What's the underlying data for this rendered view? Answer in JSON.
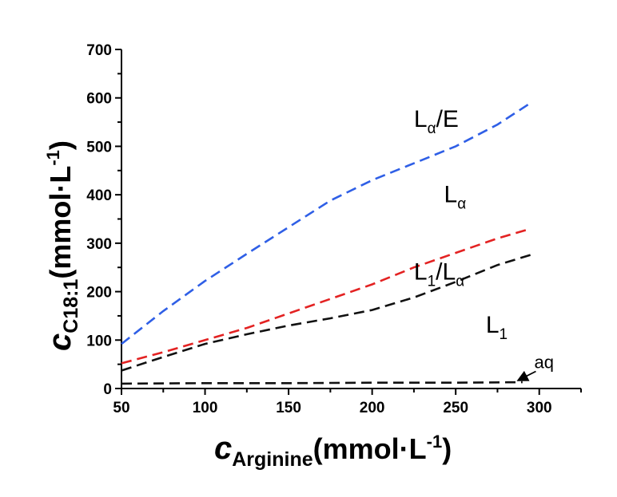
{
  "chart_data": {
    "type": "line",
    "xlim": [
      50,
      325
    ],
    "ylim": [
      0,
      700
    ],
    "xticks": [
      50,
      100,
      150,
      200,
      250,
      300
    ],
    "yticks": [
      0,
      100,
      200,
      300,
      400,
      500,
      600,
      700
    ],
    "xtick_labels": [
      "50",
      "100",
      "150",
      "200",
      "250",
      "300"
    ],
    "ytick_labels": [
      "0",
      "100",
      "200",
      "300",
      "400",
      "500",
      "600",
      "700"
    ],
    "xlabel": {
      "var": "c",
      "sub": "Arginine",
      "unit": "(mmol·L",
      "exp": "-1",
      "close": ")"
    },
    "ylabel": {
      "var": "c",
      "sub": "C18:1",
      "unit": "(mmol·L",
      "exp": "-1",
      "close": ")"
    },
    "grid": false,
    "series": [
      {
        "color": "#2f5fe6",
        "style": "dashed",
        "x": [
          50,
          75,
          100,
          125,
          150,
          175,
          200,
          225,
          250,
          275,
          295
        ],
        "y": [
          92,
          160,
          222,
          278,
          333,
          388,
          430,
          465,
          500,
          545,
          590
        ]
      },
      {
        "color": "#e32222",
        "style": "dashed",
        "x": [
          50,
          75,
          100,
          125,
          150,
          175,
          200,
          225,
          250,
          275,
          295
        ],
        "y": [
          52,
          75,
          100,
          125,
          155,
          185,
          215,
          250,
          280,
          310,
          330
        ]
      },
      {
        "color": "#111111",
        "style": "dashed",
        "x": [
          50,
          75,
          100,
          125,
          150,
          175,
          200,
          225,
          250,
          275,
          295
        ],
        "y": [
          37,
          65,
          92,
          112,
          130,
          145,
          162,
          188,
          220,
          255,
          276
        ]
      },
      {
        "color": "#111111",
        "style": "dashed",
        "x": [
          50,
          100,
          150,
          200,
          250,
          290
        ],
        "y": [
          10,
          11,
          11,
          12,
          12,
          13
        ]
      }
    ],
    "annotations": [
      {
        "id": "la-e",
        "main": "L",
        "sub": "α",
        "suffix": "/E",
        "x": 225,
        "y": 540
      },
      {
        "id": "la",
        "main": "L",
        "sub": "α",
        "suffix": "",
        "x": 243,
        "y": 385
      },
      {
        "id": "l1-la",
        "main": "L",
        "sub": "1",
        "suffix": "/L",
        "sub2": "α",
        "x": 225,
        "y": 225
      },
      {
        "id": "l1",
        "main": "L",
        "sub": "1",
        "suffix": "",
        "x": 268,
        "y": 115
      },
      {
        "id": "aq",
        "main": "aq",
        "x": 297,
        "y": 42,
        "arrow_to": {
          "x": 288,
          "y": 13
        }
      }
    ]
  }
}
